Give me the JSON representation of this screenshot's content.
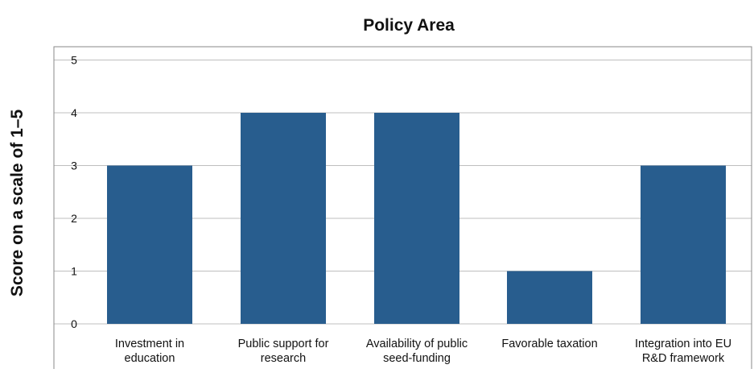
{
  "chart_data": {
    "type": "bar",
    "title": "Policy Area",
    "xlabel": "",
    "ylabel": "Score on a scale of 1–5",
    "categories": [
      [
        "Investment in",
        "education"
      ],
      [
        "Public support for",
        "research"
      ],
      [
        "Availability of public",
        "seed-funding"
      ],
      [
        "Favorable taxation"
      ],
      [
        "Integration into EU",
        "R&D framework"
      ]
    ],
    "values": [
      3,
      4,
      4,
      1,
      3
    ],
    "ylim": [
      0,
      5
    ],
    "yticks": [
      0,
      1,
      2,
      3,
      4,
      5
    ],
    "grid": true,
    "legend": "none",
    "bar_color": "#285d8e"
  }
}
